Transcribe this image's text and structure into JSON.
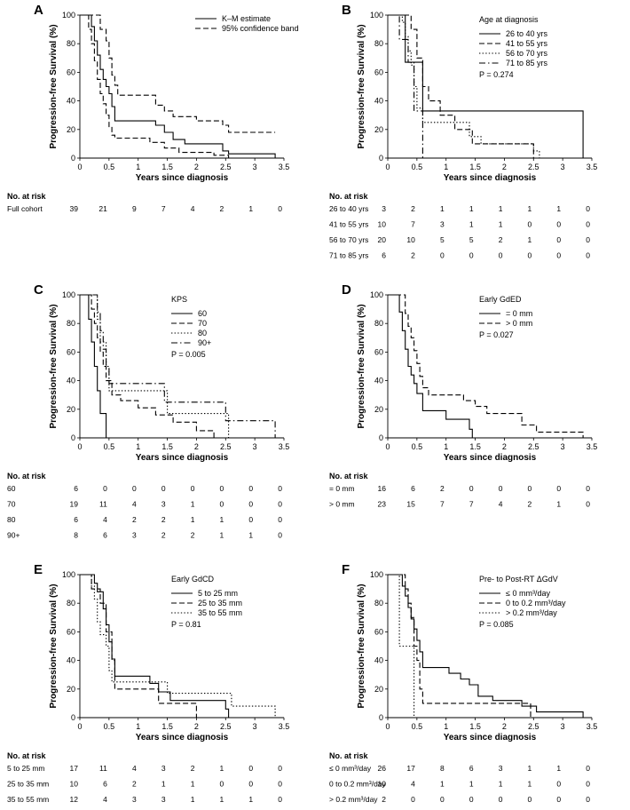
{
  "labels": {
    "ylabel": "Progression-free Survival (%)",
    "xlabel": "Years since diagnosis",
    "risk_header": "No. at risk"
  },
  "axes": {
    "x_ticks": [
      "0",
      "0.5",
      "1",
      "1.5",
      "2",
      "2.5",
      "3",
      "3.5"
    ],
    "y_ticks": [
      "0",
      "20",
      "40",
      "60",
      "80",
      "100"
    ]
  },
  "chart_data": [
    {
      "panel": "A",
      "type": "line",
      "xlim": [
        0,
        3.5
      ],
      "ylim": [
        0,
        100
      ],
      "xlabel": "Years since diagnosis",
      "ylabel": "Progression-free Survival (%)",
      "legend_title": "",
      "p_value": "",
      "series": [
        {
          "name": "K–M estimate",
          "style": "solid",
          "x": [
            0,
            0.2,
            0.25,
            0.3,
            0.35,
            0.4,
            0.45,
            0.5,
            0.55,
            0.6,
            1.3,
            1.45,
            1.6,
            1.8,
            2.45,
            2.55,
            3.35
          ],
          "y": [
            100,
            92,
            82,
            72,
            62,
            55,
            50,
            45,
            36,
            26,
            23,
            18,
            13,
            10,
            5,
            3,
            0
          ]
        },
        {
          "name": "95% confidence band",
          "style": "dashed",
          "x": [
            0,
            0.3,
            0.35,
            0.45,
            0.5,
            0.55,
            0.6,
            0.65,
            1.1,
            1.3,
            1.45,
            1.6,
            2.0,
            2.45,
            2.55,
            3.35
          ],
          "y": [
            100,
            100,
            90,
            82,
            70,
            58,
            51,
            44,
            44,
            37,
            33,
            29,
            26,
            23,
            18,
            18
          ]
        },
        {
          "name": "",
          "style": "dashed",
          "x": [
            0,
            0.15,
            0.2,
            0.25,
            0.3,
            0.35,
            0.4,
            0.45,
            0.5,
            0.55,
            0.6,
            0.95,
            1.2,
            1.45,
            1.7,
            2.3,
            2.55,
            3.35
          ],
          "y": [
            100,
            90,
            80,
            68,
            55,
            45,
            38,
            30,
            22,
            16,
            14,
            14,
            11,
            7,
            4,
            2,
            0,
            0
          ]
        }
      ],
      "risk": {
        "rows": [
          {
            "label": "Full cohort",
            "values": [
              "39",
              "21",
              "9",
              "7",
              "4",
              "2",
              "1",
              "0"
            ]
          }
        ]
      }
    },
    {
      "panel": "B",
      "type": "line",
      "xlim": [
        0,
        3.5
      ],
      "ylim": [
        0,
        100
      ],
      "xlabel": "Years since diagnosis",
      "ylabel": "Progression-free Survival (%)",
      "legend_title": "Age at diagnosis",
      "p_value": "P = 0.274",
      "series": [
        {
          "name": "26 to 40 yrs",
          "style": "solid",
          "x": [
            0,
            0.3,
            0.6,
            3.35
          ],
          "y": [
            100,
            67,
            33,
            0
          ]
        },
        {
          "name": "41 to 55 yrs",
          "style": "dashed",
          "x": [
            0,
            0.4,
            0.5,
            0.6,
            0.7,
            0.9,
            1.15,
            1.45,
            1.8,
            2.4,
            2.5
          ],
          "y": [
            100,
            90,
            70,
            50,
            40,
            30,
            20,
            10,
            10,
            10,
            0
          ]
        },
        {
          "name": "56 to 70 yrs",
          "style": "dotted",
          "x": [
            0,
            0.25,
            0.3,
            0.35,
            0.4,
            0.45,
            0.5,
            0.6,
            1.25,
            1.4,
            1.6,
            2.5,
            2.6
          ],
          "y": [
            100,
            95,
            85,
            75,
            65,
            50,
            35,
            25,
            25,
            15,
            10,
            5,
            0
          ]
        },
        {
          "name": "71 to 85 yrs",
          "style": "dashdot",
          "x": [
            0,
            0.2,
            0.35,
            0.45,
            0.6
          ],
          "y": [
            100,
            83,
            67,
            33,
            0
          ]
        }
      ],
      "risk": {
        "rows": [
          {
            "label": "26 to 40 yrs",
            "values": [
              "3",
              "2",
              "1",
              "1",
              "1",
              "1",
              "1",
              "0"
            ]
          },
          {
            "label": "41 to 55 yrs",
            "values": [
              "10",
              "7",
              "3",
              "1",
              "1",
              "0",
              "0",
              "0"
            ]
          },
          {
            "label": "56 to 70 yrs",
            "values": [
              "20",
              "10",
              "5",
              "5",
              "2",
              "1",
              "0",
              "0"
            ]
          },
          {
            "label": "71 to 85 yrs",
            "values": [
              "6",
              "2",
              "0",
              "0",
              "0",
              "0",
              "0",
              "0"
            ]
          }
        ]
      }
    },
    {
      "panel": "C",
      "type": "line",
      "xlim": [
        0,
        3.5
      ],
      "ylim": [
        0,
        100
      ],
      "xlabel": "Years since diagnosis",
      "ylabel": "Progression-free Survival (%)",
      "legend_title": "KPS",
      "p_value": "P = 0.005",
      "series": [
        {
          "name": "60",
          "style": "solid",
          "x": [
            0,
            0.15,
            0.2,
            0.25,
            0.3,
            0.35,
            0.4,
            0.45
          ],
          "y": [
            100,
            83,
            67,
            50,
            33,
            17,
            17,
            0
          ]
        },
        {
          "name": "70",
          "style": "dashed",
          "x": [
            0,
            0.2,
            0.25,
            0.3,
            0.35,
            0.4,
            0.45,
            0.55,
            0.7,
            1.0,
            1.3,
            1.6,
            2.0,
            2.3
          ],
          "y": [
            100,
            90,
            80,
            70,
            60,
            50,
            40,
            30,
            26,
            21,
            16,
            11,
            5,
            0
          ]
        },
        {
          "name": "80",
          "style": "dotted",
          "x": [
            0,
            0.3,
            0.35,
            0.45,
            0.5,
            1.5,
            2.55
          ],
          "y": [
            100,
            83,
            67,
            50,
            33,
            17,
            0
          ]
        },
        {
          "name": "90+",
          "style": "dashdot",
          "x": [
            0,
            0.3,
            0.35,
            0.4,
            0.45,
            0.5,
            0.55,
            1.45,
            2.5,
            2.6,
            3.35
          ],
          "y": [
            100,
            88,
            75,
            62,
            50,
            38,
            38,
            25,
            12,
            12,
            0
          ]
        }
      ],
      "risk": {
        "rows": [
          {
            "label": "60",
            "values": [
              "6",
              "0",
              "0",
              "0",
              "0",
              "0",
              "0",
              "0"
            ]
          },
          {
            "label": "70",
            "values": [
              "19",
              "11",
              "4",
              "3",
              "1",
              "0",
              "0",
              "0"
            ]
          },
          {
            "label": "80",
            "values": [
              "6",
              "4",
              "2",
              "2",
              "1",
              "1",
              "0",
              "0"
            ]
          },
          {
            "label": "90+",
            "values": [
              "8",
              "6",
              "3",
              "2",
              "2",
              "1",
              "1",
              "0"
            ]
          }
        ]
      }
    },
    {
      "panel": "D",
      "type": "line",
      "xlim": [
        0,
        3.5
      ],
      "ylim": [
        0,
        100
      ],
      "xlabel": "Years since diagnosis",
      "ylabel": "Progression-free Survival (%)",
      "legend_title": "Early GdED",
      "p_value": "P = 0.027",
      "series": [
        {
          "name": "= 0 mm",
          "style": "solid",
          "x": [
            0,
            0.2,
            0.25,
            0.3,
            0.35,
            0.4,
            0.45,
            0.5,
            0.6,
            1.0,
            1.4,
            1.45
          ],
          "y": [
            100,
            88,
            75,
            62,
            50,
            44,
            38,
            31,
            19,
            13,
            6,
            0
          ]
        },
        {
          "name": "> 0 mm",
          "style": "dashed",
          "x": [
            0,
            0.3,
            0.35,
            0.4,
            0.45,
            0.5,
            0.55,
            0.6,
            0.7,
            1.3,
            1.5,
            1.7,
            2.3,
            2.55,
            3.35
          ],
          "y": [
            100,
            87,
            78,
            70,
            61,
            52,
            43,
            35,
            30,
            26,
            22,
            17,
            9,
            4,
            0
          ]
        }
      ],
      "risk": {
        "rows": [
          {
            "label": "= 0 mm",
            "values": [
              "16",
              "6",
              "2",
              "0",
              "0",
              "0",
              "0",
              "0"
            ]
          },
          {
            "label": "> 0 mm",
            "values": [
              "23",
              "15",
              "7",
              "7",
              "4",
              "2",
              "1",
              "0"
            ]
          }
        ]
      }
    },
    {
      "panel": "E",
      "type": "line",
      "xlim": [
        0,
        3.5
      ],
      "ylim": [
        0,
        100
      ],
      "xlabel": "Years since diagnosis",
      "ylabel": "Progression-free Survival (%)",
      "legend_title": "Early GdCD",
      "p_value": "P = 0.81",
      "series": [
        {
          "name": "5 to 25 mm",
          "style": "solid",
          "x": [
            0,
            0.25,
            0.3,
            0.4,
            0.45,
            0.5,
            0.55,
            0.6,
            1.2,
            1.35,
            1.55,
            2.5,
            2.55
          ],
          "y": [
            100,
            94,
            88,
            76,
            65,
            53,
            41,
            29,
            24,
            18,
            12,
            6,
            0
          ]
        },
        {
          "name": "25 to 35 mm",
          "style": "dashed",
          "x": [
            0,
            0.2,
            0.35,
            0.45,
            0.55,
            0.6,
            0.9,
            1.35,
            2.0
          ],
          "y": [
            100,
            90,
            80,
            60,
            40,
            20,
            20,
            10,
            0
          ]
        },
        {
          "name": "35 to 55 mm",
          "style": "dotted",
          "x": [
            0,
            0.2,
            0.25,
            0.3,
            0.35,
            0.45,
            0.5,
            0.55,
            1.3,
            1.5,
            2.6,
            3.35
          ],
          "y": [
            100,
            92,
            83,
            67,
            58,
            50,
            33,
            25,
            25,
            17,
            8,
            0
          ]
        }
      ],
      "risk": {
        "rows": [
          {
            "label": "5 to 25 mm",
            "values": [
              "17",
              "11",
              "4",
              "3",
              "2",
              "1",
              "0",
              "0"
            ]
          },
          {
            "label": "25 to 35 mm",
            "values": [
              "10",
              "6",
              "2",
              "1",
              "1",
              "0",
              "0",
              "0"
            ]
          },
          {
            "label": "35 to 55 mm",
            "values": [
              "12",
              "4",
              "3",
              "3",
              "1",
              "1",
              "1",
              "0"
            ]
          }
        ]
      }
    },
    {
      "panel": "F",
      "type": "line",
      "xlim": [
        0,
        3.5
      ],
      "ylim": [
        0,
        100
      ],
      "xlabel": "Years since diagnosis",
      "ylabel": "Progression-free Survival (%)",
      "legend_title": "Pre- to Post-RT ΔGdV",
      "p_value": "P = 0.085",
      "series": [
        {
          "name": "≤ 0 mm³/day",
          "style": "solid",
          "x": [
            0,
            0.25,
            0.3,
            0.35,
            0.4,
            0.45,
            0.5,
            0.55,
            0.6,
            1.05,
            1.25,
            1.4,
            1.55,
            1.8,
            2.3,
            2.55,
            3.35
          ],
          "y": [
            100,
            92,
            85,
            77,
            69,
            62,
            54,
            46,
            35,
            31,
            27,
            23,
            15,
            12,
            8,
            4,
            0
          ]
        },
        {
          "name": "0 to 0.2 mm³/day",
          "style": "dashed",
          "x": [
            0,
            0.3,
            0.35,
            0.4,
            0.45,
            0.5,
            0.55,
            0.6,
            2.4,
            2.45
          ],
          "y": [
            100,
            90,
            80,
            70,
            50,
            40,
            20,
            10,
            10,
            0
          ]
        },
        {
          "name": "> 0.2 mm³/day",
          "style": "dotted",
          "x": [
            0,
            0.2,
            0.45
          ],
          "y": [
            100,
            50,
            0
          ]
        }
      ],
      "risk": {
        "rows": [
          {
            "label": "≤ 0 mm³/day",
            "values": [
              "26",
              "17",
              "8",
              "6",
              "3",
              "1",
              "1",
              "0"
            ]
          },
          {
            "label": "0 to 0.2 mm³/day",
            "values": [
              "10",
              "4",
              "1",
              "1",
              "1",
              "1",
              "0",
              "0"
            ]
          },
          {
            "label": "> 0.2 mm³/day",
            "values": [
              "2",
              "0",
              "0",
              "0",
              "0",
              "0",
              "0",
              "0"
            ]
          }
        ]
      }
    }
  ]
}
